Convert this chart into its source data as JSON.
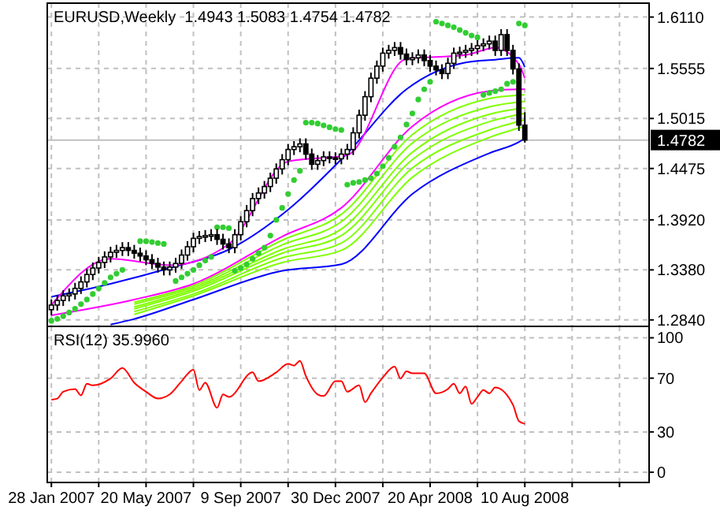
{
  "chart_data": [
    {
      "type": "candlestick",
      "title": "EURUSD,Weekly  1.4943 1.5083 1.4754 1.4782",
      "color": "#000000",
      "grid": true,
      "tick_labels": "y",
      "xlim": [
        "2007-01-25",
        "2009-01-04"
      ],
      "xticks": [
        {
          "value": "2007-01-28",
          "label": null
        },
        {
          "value": "2007-03-25",
          "label": null
        },
        {
          "value": "2007-05-20",
          "label": null
        },
        {
          "value": "2007-07-15",
          "label": null
        },
        {
          "value": "2007-09-09",
          "label": null
        },
        {
          "value": "2007-11-04",
          "label": null
        },
        {
          "value": "2007-12-30",
          "label": null
        },
        {
          "value": "2008-02-24",
          "label": null
        },
        {
          "value": "2008-04-20",
          "label": null
        },
        {
          "value": "2008-06-15",
          "label": null
        },
        {
          "value": "2008-08-10",
          "label": null
        },
        {
          "value": "2008-10-05",
          "label": null
        },
        {
          "value": "2008-11-30",
          "label": null
        }
      ],
      "ylim": [
        1.277,
        1.626
      ],
      "yticks": [
        {
          "value": 1.611,
          "label": "1.6110"
        },
        {
          "value": 1.5555,
          "label": "1.5555"
        },
        {
          "value": 1.5015,
          "label": "1.5015"
        },
        {
          "value": 1.4475,
          "label": "1.4475"
        },
        {
          "value": 1.392,
          "label": "1.3920"
        },
        {
          "value": 1.338,
          "label": "1.3380"
        },
        {
          "value": 1.284,
          "label": "1.2840"
        }
      ],
      "ref_lines": [
        {
          "axis": "y",
          "value": 1.4782,
          "label": "1.4782",
          "color": "#c0c0c0"
        }
      ],
      "x": [
        "2007-01-28",
        "2007-02-04",
        "2007-02-11",
        "2007-02-18",
        "2007-02-25",
        "2007-03-04",
        "2007-03-11",
        "2007-03-18",
        "2007-03-25",
        "2007-04-01",
        "2007-04-08",
        "2007-04-15",
        "2007-04-22",
        "2007-04-29",
        "2007-05-06",
        "2007-05-13",
        "2007-05-20",
        "2007-05-27",
        "2007-06-03",
        "2007-06-10",
        "2007-06-17",
        "2007-06-24",
        "2007-07-01",
        "2007-07-08",
        "2007-07-15",
        "2007-07-22",
        "2007-07-29",
        "2007-08-05",
        "2007-08-12",
        "2007-08-19",
        "2007-08-26",
        "2007-09-02",
        "2007-09-09",
        "2007-09-16",
        "2007-09-23",
        "2007-09-30",
        "2007-10-07",
        "2007-10-14",
        "2007-10-21",
        "2007-10-28",
        "2007-11-04",
        "2007-11-11",
        "2007-11-18",
        "2007-11-25",
        "2007-12-02",
        "2007-12-09",
        "2007-12-16",
        "2007-12-23",
        "2007-12-30",
        "2008-01-06",
        "2008-01-13",
        "2008-01-20",
        "2008-01-27",
        "2008-02-03",
        "2008-02-10",
        "2008-02-17",
        "2008-02-24",
        "2008-03-02",
        "2008-03-09",
        "2008-03-16",
        "2008-03-23",
        "2008-03-30",
        "2008-04-06",
        "2008-04-13",
        "2008-04-20",
        "2008-04-27",
        "2008-05-04",
        "2008-05-11",
        "2008-05-18",
        "2008-05-25",
        "2008-06-01",
        "2008-06-08",
        "2008-06-15",
        "2008-06-22",
        "2008-06-29",
        "2008-07-06",
        "2008-07-13",
        "2008-07-20",
        "2008-07-27",
        "2008-08-03",
        "2008-08-10"
      ],
      "ohlc": [
        [
          1.295,
          1.306,
          1.289,
          1.3
        ],
        [
          1.3,
          1.311,
          1.294,
          1.305
        ],
        [
          1.305,
          1.316,
          1.299,
          1.31
        ],
        [
          1.31,
          1.318,
          1.304,
          1.312
        ],
        [
          1.312,
          1.324,
          1.306,
          1.318
        ],
        [
          1.318,
          1.331,
          1.312,
          1.325
        ],
        [
          1.325,
          1.339,
          1.319,
          1.333
        ],
        [
          1.333,
          1.346,
          1.327,
          1.34
        ],
        [
          1.34,
          1.352,
          1.334,
          1.346
        ],
        [
          1.346,
          1.358,
          1.34,
          1.352
        ],
        [
          1.352,
          1.363,
          1.346,
          1.357
        ],
        [
          1.357,
          1.365,
          1.351,
          1.359
        ],
        [
          1.359,
          1.368,
          1.353,
          1.362
        ],
        [
          1.362,
          1.368,
          1.353,
          1.359
        ],
        [
          1.359,
          1.365,
          1.35,
          1.356
        ],
        [
          1.356,
          1.362,
          1.347,
          1.353
        ],
        [
          1.353,
          1.359,
          1.343,
          1.349
        ],
        [
          1.349,
          1.355,
          1.339,
          1.345
        ],
        [
          1.345,
          1.351,
          1.335,
          1.341
        ],
        [
          1.341,
          1.347,
          1.332,
          1.338
        ],
        [
          1.338,
          1.347,
          1.332,
          1.341
        ],
        [
          1.341,
          1.351,
          1.335,
          1.345
        ],
        [
          1.345,
          1.36,
          1.339,
          1.354
        ],
        [
          1.354,
          1.369,
          1.348,
          1.363
        ],
        [
          1.363,
          1.378,
          1.357,
          1.372
        ],
        [
          1.372,
          1.38,
          1.366,
          1.374
        ],
        [
          1.374,
          1.381,
          1.368,
          1.375
        ],
        [
          1.375,
          1.382,
          1.369,
          1.376
        ],
        [
          1.376,
          1.382,
          1.365,
          1.371
        ],
        [
          1.371,
          1.377,
          1.36,
          1.366
        ],
        [
          1.366,
          1.372,
          1.356,
          1.362
        ],
        [
          1.362,
          1.382,
          1.356,
          1.376
        ],
        [
          1.376,
          1.396,
          1.37,
          1.39
        ],
        [
          1.39,
          1.408,
          1.384,
          1.402
        ],
        [
          1.402,
          1.421,
          1.396,
          1.415
        ],
        [
          1.415,
          1.427,
          1.409,
          1.421
        ],
        [
          1.421,
          1.434,
          1.415,
          1.428
        ],
        [
          1.428,
          1.443,
          1.422,
          1.437
        ],
        [
          1.437,
          1.453,
          1.431,
          1.447
        ],
        [
          1.447,
          1.463,
          1.441,
          1.457
        ],
        [
          1.457,
          1.474,
          1.451,
          1.468
        ],
        [
          1.468,
          1.477,
          1.462,
          1.471
        ],
        [
          1.471,
          1.48,
          1.465,
          1.474
        ],
        [
          1.474,
          1.48,
          1.457,
          1.463
        ],
        [
          1.463,
          1.469,
          1.446,
          1.452
        ],
        [
          1.452,
          1.462,
          1.446,
          1.456
        ],
        [
          1.456,
          1.466,
          1.45,
          1.46
        ],
        [
          1.46,
          1.466,
          1.453,
          1.459
        ],
        [
          1.459,
          1.465,
          1.452,
          1.458
        ],
        [
          1.458,
          1.469,
          1.452,
          1.463
        ],
        [
          1.463,
          1.474,
          1.457,
          1.468
        ],
        [
          1.468,
          1.492,
          1.462,
          1.486
        ],
        [
          1.486,
          1.511,
          1.48,
          1.505
        ],
        [
          1.505,
          1.531,
          1.499,
          1.525
        ],
        [
          1.525,
          1.551,
          1.519,
          1.545
        ],
        [
          1.545,
          1.564,
          1.539,
          1.558
        ],
        [
          1.558,
          1.578,
          1.552,
          1.572
        ],
        [
          1.572,
          1.581,
          1.566,
          1.575
        ],
        [
          1.575,
          1.584,
          1.569,
          1.578
        ],
        [
          1.578,
          1.584,
          1.565,
          1.571
        ],
        [
          1.571,
          1.577,
          1.559,
          1.565
        ],
        [
          1.565,
          1.573,
          1.559,
          1.567
        ],
        [
          1.567,
          1.576,
          1.561,
          1.57
        ],
        [
          1.57,
          1.576,
          1.558,
          1.564
        ],
        [
          1.564,
          1.57,
          1.552,
          1.558
        ],
        [
          1.558,
          1.564,
          1.548,
          1.554
        ],
        [
          1.554,
          1.56,
          1.544,
          1.55
        ],
        [
          1.55,
          1.567,
          1.544,
          1.561
        ],
        [
          1.561,
          1.578,
          1.555,
          1.572
        ],
        [
          1.572,
          1.579,
          1.566,
          1.573
        ],
        [
          1.573,
          1.581,
          1.567,
          1.575
        ],
        [
          1.575,
          1.583,
          1.569,
          1.577
        ],
        [
          1.577,
          1.586,
          1.571,
          1.58
        ],
        [
          1.58,
          1.588,
          1.574,
          1.582
        ],
        [
          1.582,
          1.591,
          1.576,
          1.585
        ],
        [
          1.585,
          1.591,
          1.569,
          1.575
        ],
        [
          1.575,
          1.598,
          1.569,
          1.592
        ],
        [
          1.592,
          1.598,
          1.569,
          1.575
        ],
        [
          1.575,
          1.581,
          1.549,
          1.555
        ],
        [
          1.555,
          1.561,
          1.488,
          1.4943
        ],
        [
          1.4943,
          1.5083,
          1.4754,
          1.4782
        ]
      ],
      "series": [
        {
          "type": "line",
          "color": "#0000ff",
          "x": [
            "2007-04-08",
            "2007-05-06",
            "2007-07-15",
            "2007-10-28",
            "2008-01-06",
            "2008-03-30",
            "2008-06-29",
            "2008-08-03",
            "2008-08-10"
          ],
          "values": [
            1.279,
            1.285,
            1.306,
            1.337,
            1.344,
            1.42,
            1.464,
            1.476,
            1.48
          ]
        },
        {
          "type": "line",
          "color": "#7fff00",
          "x": [
            "2007-05-06",
            "2007-07-15",
            "2007-10-28",
            "2008-01-06",
            "2008-03-30",
            "2008-06-29",
            "2008-08-10"
          ],
          "values": [
            1.29,
            1.31,
            1.346,
            1.359,
            1.438,
            1.481,
            1.493
          ]
        },
        {
          "type": "line",
          "color": "#7fff00",
          "x": [
            "2007-05-06",
            "2007-07-15",
            "2007-10-28",
            "2008-01-06",
            "2008-03-30",
            "2008-06-29",
            "2008-08-10"
          ],
          "values": [
            1.293,
            1.312,
            1.351,
            1.367,
            1.448,
            1.489,
            1.5
          ]
        },
        {
          "type": "line",
          "color": "#7fff00",
          "x": [
            "2007-05-06",
            "2007-07-15",
            "2007-10-28",
            "2008-01-06",
            "2008-03-30",
            "2008-06-29",
            "2008-08-10"
          ],
          "values": [
            1.296,
            1.315,
            1.356,
            1.375,
            1.457,
            1.498,
            1.507
          ]
        },
        {
          "type": "line",
          "color": "#7fff00",
          "x": [
            "2007-05-06",
            "2007-07-15",
            "2007-10-28",
            "2008-01-06",
            "2008-03-30",
            "2008-06-29",
            "2008-08-10"
          ],
          "values": [
            1.298,
            1.317,
            1.36,
            1.382,
            1.465,
            1.506,
            1.513
          ]
        },
        {
          "type": "line",
          "color": "#7fff00",
          "x": [
            "2007-05-06",
            "2007-07-15",
            "2007-10-28",
            "2008-01-06",
            "2008-03-30",
            "2008-06-29",
            "2008-08-10"
          ],
          "values": [
            1.301,
            1.319,
            1.365,
            1.39,
            1.475,
            1.514,
            1.52
          ]
        },
        {
          "type": "line",
          "color": "#7fff00",
          "x": [
            "2007-05-06",
            "2007-07-15",
            "2007-10-28",
            "2008-01-06",
            "2008-03-30",
            "2008-06-29",
            "2008-08-10"
          ],
          "values": [
            1.303,
            1.321,
            1.37,
            1.398,
            1.484,
            1.523,
            1.527
          ]
        },
        {
          "type": "line",
          "color": "#ff00ff",
          "x": [
            "2007-01-28",
            "2007-05-06",
            "2007-07-15",
            "2007-10-28",
            "2008-01-06",
            "2008-03-30",
            "2008-06-29",
            "2008-08-03",
            "2008-08-10"
          ],
          "values": [
            1.289,
            1.306,
            1.323,
            1.374,
            1.405,
            1.493,
            1.531,
            1.533,
            1.533
          ]
        },
        {
          "type": "line",
          "color": "#0000ff",
          "x": [
            "2007-01-28",
            "2007-04-08",
            "2007-06-17",
            "2007-08-26",
            "2007-11-04",
            "2008-01-13",
            "2008-03-23",
            "2008-06-01",
            "2008-07-06",
            "2008-08-03",
            "2008-08-10"
          ],
          "values": [
            1.309,
            1.323,
            1.34,
            1.36,
            1.403,
            1.464,
            1.533,
            1.562,
            1.565,
            1.567,
            1.557
          ]
        },
        {
          "type": "line",
          "color": "#ff00ff",
          "x": [
            "2007-01-28",
            "2007-04-08",
            "2007-06-17",
            "2007-08-26",
            "2007-11-04",
            "2008-01-13",
            "2008-03-23",
            "2008-06-01",
            "2008-07-06",
            "2008-08-03",
            "2008-08-10"
          ],
          "values": [
            1.3,
            1.35,
            1.343,
            1.366,
            1.455,
            1.462,
            1.566,
            1.57,
            1.578,
            1.56,
            1.545
          ]
        },
        {
          "type": "scatter",
          "color": "#32cd32",
          "marker": "circle",
          "x": [
            "2007-01-28",
            "2007-02-04",
            "2007-02-11",
            "2007-02-18",
            "2007-02-25",
            "2007-03-04",
            "2007-03-11",
            "2007-03-18",
            "2007-03-25",
            "2007-04-01",
            "2007-04-08",
            "2007-04-15",
            "2007-04-22",
            "2007-05-13",
            "2007-05-20",
            "2007-05-27",
            "2007-06-03",
            "2007-06-10",
            "2007-06-24",
            "2007-07-01",
            "2007-07-08",
            "2007-07-15",
            "2007-07-22",
            "2007-07-29",
            "2007-08-05",
            "2007-08-12",
            "2007-08-19",
            "2007-08-26",
            "2007-09-02",
            "2007-09-09",
            "2007-09-16",
            "2007-09-23",
            "2007-09-30",
            "2007-10-07",
            "2007-10-14",
            "2007-10-21",
            "2007-10-28",
            "2007-11-04",
            "2007-11-11",
            "2007-11-18",
            "2007-11-25",
            "2007-12-02",
            "2007-12-09",
            "2007-12-16",
            "2007-12-23",
            "2007-12-30",
            "2008-01-06",
            "2008-01-13",
            "2008-01-20",
            "2008-01-27",
            "2008-02-03",
            "2008-02-10",
            "2008-02-17",
            "2008-02-24",
            "2008-03-02",
            "2008-03-09",
            "2008-03-16",
            "2008-03-23",
            "2008-03-30",
            "2008-04-06",
            "2008-04-13",
            "2008-04-20",
            "2008-04-27",
            "2008-05-04",
            "2008-05-11",
            "2008-05-18",
            "2008-05-25",
            "2008-06-01",
            "2008-06-08",
            "2008-06-15",
            "2008-06-22",
            "2008-06-29",
            "2008-07-06",
            "2008-07-13",
            "2008-07-20",
            "2008-07-27",
            "2008-08-03",
            "2008-08-10"
          ],
          "values": [
            1.283,
            1.285,
            1.288,
            1.292,
            1.296,
            1.301,
            1.306,
            1.312,
            1.318,
            1.324,
            1.33,
            1.334,
            1.338,
            1.369,
            1.369,
            1.368,
            1.367,
            1.366,
            1.326,
            1.33,
            1.334,
            1.338,
            1.343,
            1.348,
            1.352,
            1.384,
            1.384,
            1.383,
            1.337,
            1.34,
            1.344,
            1.35,
            1.356,
            1.362,
            1.375,
            1.392,
            1.405,
            1.42,
            1.435,
            1.445,
            1.497,
            1.497,
            1.496,
            1.494,
            1.492,
            1.49,
            1.489,
            1.43,
            1.432,
            1.433,
            1.435,
            1.437,
            1.442,
            1.45,
            1.459,
            1.471,
            1.481,
            1.495,
            1.507,
            1.522,
            1.533,
            1.541,
            1.606,
            1.604,
            1.602,
            1.6,
            1.597,
            1.594,
            1.591,
            1.589,
            1.527,
            1.529,
            1.531,
            1.533,
            1.539,
            1.541,
            1.604,
            1.602
          ]
        }
      ]
    },
    {
      "type": "line",
      "title": "RSI(12) 35.9960",
      "grid": true,
      "xlim": [
        "2007-01-25",
        "2009-01-04"
      ],
      "xticks": [
        {
          "value": "2007-01-28",
          "label": "28 Jan 2007"
        },
        {
          "value": "2007-03-25",
          "label": null
        },
        {
          "value": "2007-05-20",
          "label": "20 May 2007"
        },
        {
          "value": "2007-07-15",
          "label": null
        },
        {
          "value": "2007-09-09",
          "label": "9 Sep 2007"
        },
        {
          "value": "2007-11-04",
          "label": null
        },
        {
          "value": "2007-12-30",
          "label": "30 Dec 2007"
        },
        {
          "value": "2008-02-24",
          "label": null
        },
        {
          "value": "2008-04-20",
          "label": "20 Apr 2008"
        },
        {
          "value": "2008-06-15",
          "label": null
        },
        {
          "value": "2008-08-10",
          "label": "10 Aug 2008"
        },
        {
          "value": "2008-10-05",
          "label": null
        },
        {
          "value": "2008-11-30",
          "label": null
        }
      ],
      "ylim": [
        -7.6,
        108.5
      ],
      "yticks": [
        100,
        70,
        30,
        0
      ],
      "series": [
        {
          "color": "#ff0000",
          "x": [
            "2007-01-28",
            "2007-02-04",
            "2007-02-11",
            "2007-02-25",
            "2007-03-04",
            "2007-03-11",
            "2007-03-18",
            "2007-04-08",
            "2007-04-22",
            "2007-05-06",
            "2007-05-20",
            "2007-06-03",
            "2007-06-17",
            "2007-07-01",
            "2007-07-15",
            "2007-07-22",
            "2007-07-29",
            "2007-08-12",
            "2007-08-19",
            "2007-08-26",
            "2007-09-23",
            "2007-09-30",
            "2007-10-21",
            "2007-11-04",
            "2007-11-11",
            "2007-11-18",
            "2007-11-25",
            "2007-12-09",
            "2007-12-16",
            "2007-12-30",
            "2008-01-06",
            "2008-01-13",
            "2008-01-27",
            "2008-02-03",
            "2008-02-10",
            "2008-02-24",
            "2008-03-09",
            "2008-03-16",
            "2008-03-23",
            "2008-03-30",
            "2008-04-13",
            "2008-04-27",
            "2008-05-11",
            "2008-05-18",
            "2008-05-25",
            "2008-06-01",
            "2008-06-08",
            "2008-06-15",
            "2008-06-22",
            "2008-06-29",
            "2008-07-06",
            "2008-07-27",
            "2008-08-03",
            "2008-08-10"
          ],
          "values": [
            54.0,
            54.8,
            59.9,
            61.9,
            57.2,
            65.8,
            64.6,
            69.7,
            77.5,
            66.6,
            59.9,
            54.8,
            57.9,
            67.7,
            76.3,
            61.1,
            66.6,
            48.0,
            57.9,
            56.0,
            74.3,
            67.7,
            74.3,
            80.6,
            79.4,
            82.9,
            71.6,
            57.9,
            56.7,
            67.7,
            67.7,
            59.9,
            64.6,
            52.1,
            58.7,
            70.5,
            78.6,
            69.7,
            75.1,
            73.6,
            73.6,
            58.7,
            61.9,
            65.8,
            58.7,
            63.8,
            50.9,
            56.0,
            61.1,
            58.7,
            63.0,
            50.1,
            38.0,
            35.996
          ]
        }
      ]
    }
  ]
}
